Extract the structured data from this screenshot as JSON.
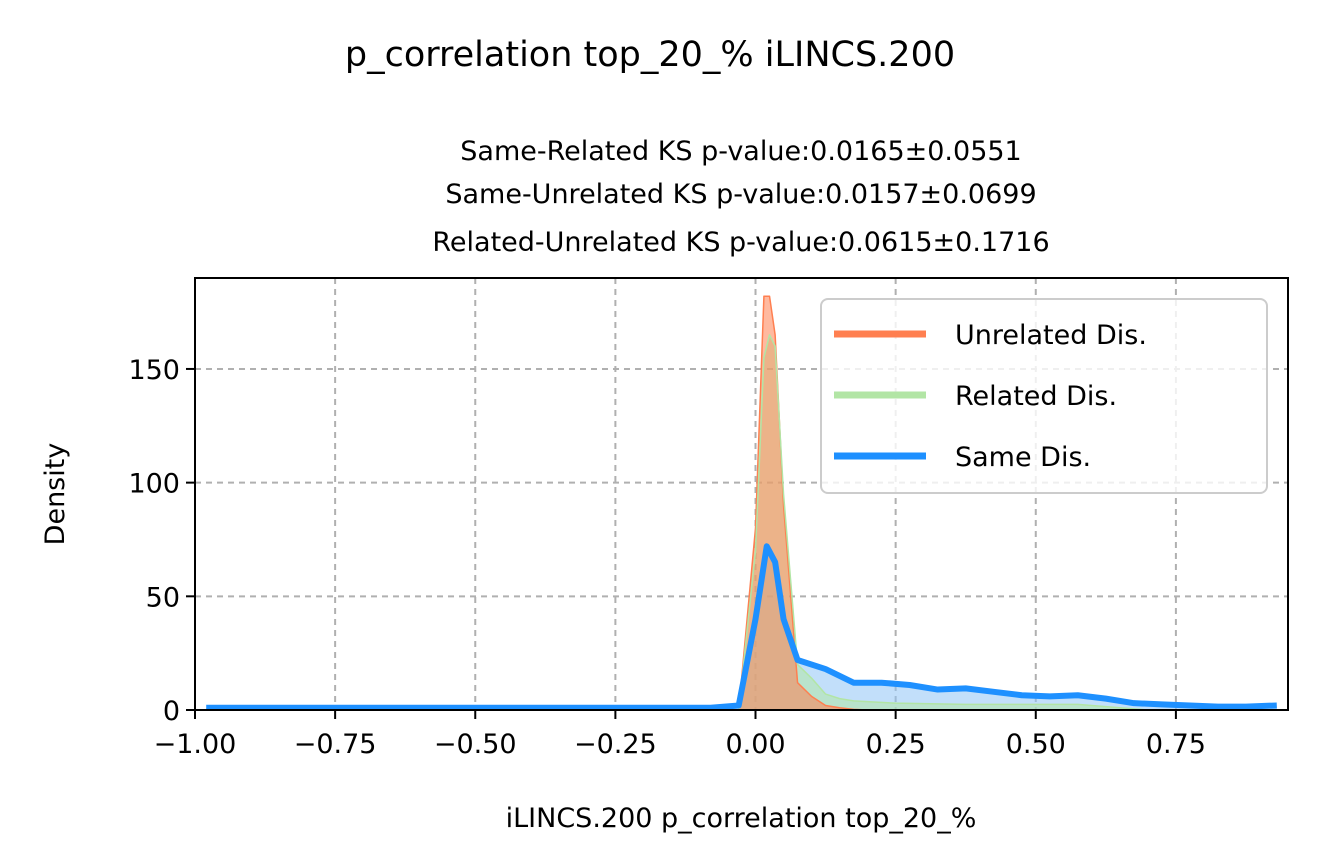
{
  "suptitle": "p_correlation top_20_% iLINCS.200",
  "subtitle_lines": [
    "Same-Related KS p-value:0.0165±0.0551",
    "Same-Unrelated KS p-value:0.0157±0.0699",
    "Related-Unrelated KS p-value:0.0615±0.1716"
  ],
  "chart_data": {
    "type": "area",
    "title": "Same-Related KS p-value:0.0165±0.0551\nSame-Unrelated KS p-value:0.0157±0.0699\nRelated-Unrelated KS p-value:0.0615±0.1716",
    "xlabel": "iLINCS.200 p_correlation top_20_%",
    "ylabel": "Density",
    "xlim": [
      -1.0,
      0.95
    ],
    "ylim": [
      0,
      190
    ],
    "xticks": [
      -1.0,
      -0.75,
      -0.5,
      -0.25,
      0.0,
      0.25,
      0.5,
      0.75
    ],
    "xtick_labels": [
      "−1.00",
      "−0.75",
      "−0.50",
      "−0.25",
      "0.00",
      "0.25",
      "0.50",
      "0.75"
    ],
    "yticks": [
      0,
      50,
      100,
      150
    ],
    "ytick_labels": [
      "0",
      "50",
      "100",
      "150"
    ],
    "grid": true,
    "legend_position": "top-right",
    "series": [
      {
        "name": "Unrelated Dis.",
        "color": "#ff7f50",
        "fill_color": "#ff7f50",
        "x": [
          -0.03,
          0.0,
          0.015,
          0.025,
          0.035,
          0.05,
          0.075,
          0.1,
          0.125,
          0.15,
          0.175,
          0.2
        ],
        "y": [
          0,
          80,
          182,
          182,
          165,
          90,
          12,
          6,
          2,
          1,
          0.3,
          0
        ]
      },
      {
        "name": "Related Dis.",
        "color": "#b2e5a5",
        "fill_color": "#b2e5a5",
        "x": [
          -0.03,
          0.0,
          0.015,
          0.025,
          0.035,
          0.05,
          0.075,
          0.1,
          0.125,
          0.15,
          0.175,
          0.25,
          0.375,
          0.5,
          0.575,
          0.65,
          0.7
        ],
        "y": [
          0,
          70,
          155,
          165,
          160,
          95,
          20,
          14,
          7,
          5,
          4,
          3,
          2.5,
          2.5,
          2.5,
          1,
          0
        ]
      },
      {
        "name": "Same Dis.",
        "color": "#1e90ff",
        "fill_color": "#8fc4f5",
        "x": [
          -0.98,
          -0.75,
          -0.5,
          -0.25,
          -0.08,
          -0.03,
          0.0,
          0.02,
          0.035,
          0.05,
          0.075,
          0.125,
          0.175,
          0.225,
          0.275,
          0.325,
          0.375,
          0.425,
          0.475,
          0.525,
          0.575,
          0.625,
          0.675,
          0.725,
          0.775,
          0.825,
          0.875,
          0.93
        ],
        "y": [
          1,
          1,
          1,
          1,
          1,
          2,
          40,
          72,
          65,
          40,
          22,
          18,
          12,
          12,
          11,
          9,
          9.5,
          8,
          6.5,
          6,
          6.5,
          5,
          3,
          2.5,
          2,
          1.5,
          1.5,
          2
        ]
      }
    ]
  }
}
